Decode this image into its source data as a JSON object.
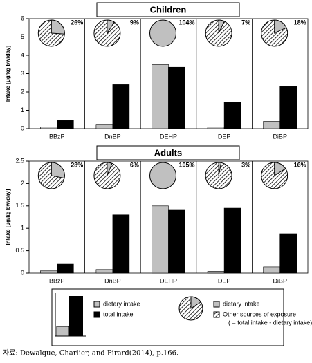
{
  "chart_data": [
    {
      "type": "bar",
      "title": "Children",
      "y_label": "Intake [μg/kg bw/day]",
      "categories": [
        "BBzP",
        "DnBP",
        "DEHP",
        "DEP",
        "DiBP"
      ],
      "series": [
        {
          "name": "dietary intake",
          "color": "#c0c0c0",
          "values": [
            0.1,
            0.2,
            3.5,
            0.1,
            0.4
          ]
        },
        {
          "name": "total intake",
          "color": "#000000",
          "values": [
            0.45,
            2.4,
            3.35,
            1.45,
            2.3
          ]
        }
      ],
      "ylim": [
        0,
        6
      ],
      "yticks": [
        0,
        1,
        2,
        3,
        4,
        5,
        6
      ],
      "pie": {
        "values": [
          26,
          9,
          104,
          7,
          18
        ],
        "value_labels": [
          "26%",
          "9%",
          "104%",
          "7%",
          "18%"
        ]
      }
    },
    {
      "type": "bar",
      "title": "Adults",
      "y_label": "Intake [µg/kg bw/day]",
      "categories": [
        "BBzP",
        "DnBP",
        "DEHP",
        "DEP",
        "DiBP"
      ],
      "series": [
        {
          "name": "dietary intake",
          "color": "#c0c0c0",
          "values": [
            0.05,
            0.08,
            1.5,
            0.04,
            0.14
          ]
        },
        {
          "name": "total intake",
          "color": "#000000",
          "values": [
            0.2,
            1.3,
            1.42,
            1.45,
            0.88
          ]
        }
      ],
      "ylim": [
        0,
        2.5
      ],
      "yticks": [
        0,
        0.5,
        1,
        1.5,
        2,
        2.5
      ],
      "pie": {
        "values": [
          28,
          6,
          105,
          3,
          16
        ],
        "value_labels": [
          "28%",
          "6%",
          "105%",
          "3%",
          "16%"
        ]
      }
    }
  ],
  "pie_legend": [
    "dietary intake",
    "Other sources of exposure",
    "( = total intake - dietary intake)"
  ],
  "source": "자료: Dewalque, Charlier, and Pirard(2014), p.166."
}
